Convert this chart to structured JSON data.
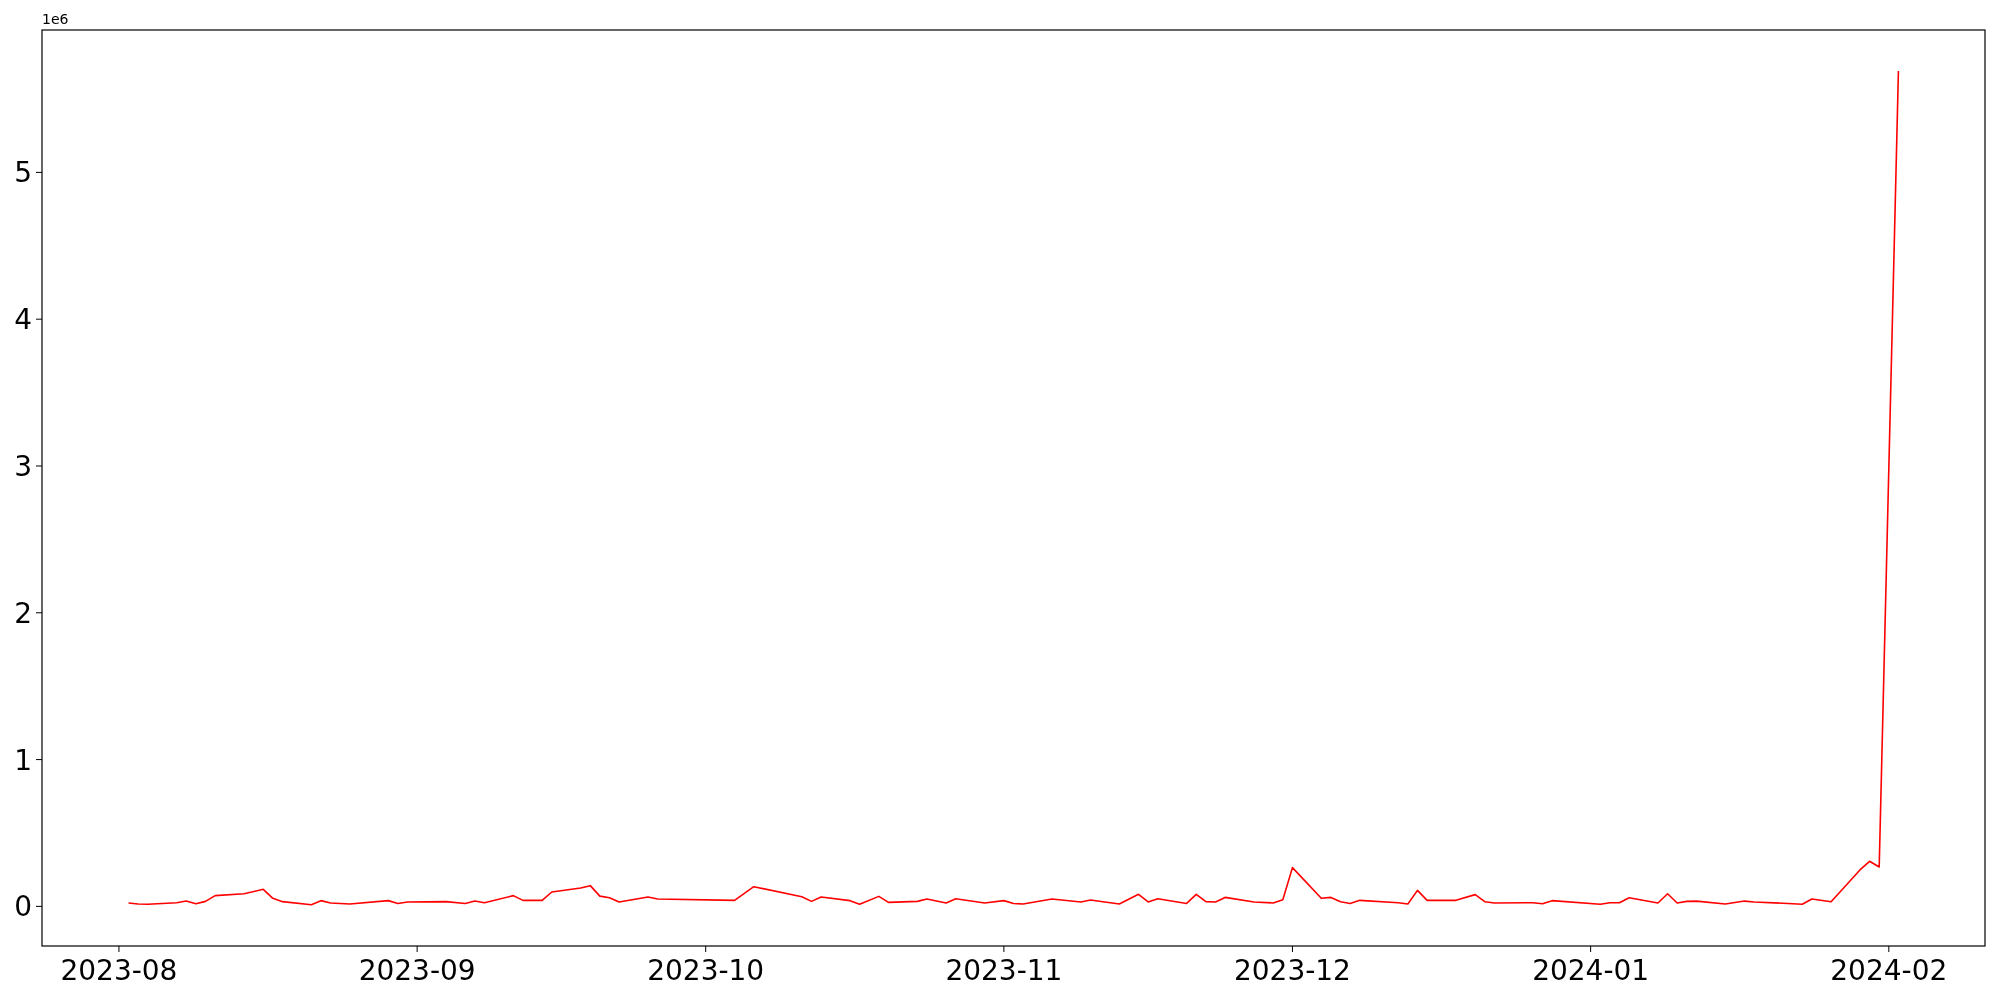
{
  "chart_data": {
    "type": "line",
    "annotations": [
      "1e6"
    ],
    "x": [
      "2023-08-02",
      "2023-08-03",
      "2023-08-04",
      "2023-08-07",
      "2023-08-08",
      "2023-08-09",
      "2023-08-10",
      "2023-08-11",
      "2023-08-14",
      "2023-08-16",
      "2023-08-17",
      "2023-08-18",
      "2023-08-21",
      "2023-08-22",
      "2023-08-23",
      "2023-08-25",
      "2023-08-29",
      "2023-08-30",
      "2023-08-31",
      "2023-09-04",
      "2023-09-06",
      "2023-09-07",
      "2023-09-08",
      "2023-09-11",
      "2023-09-12",
      "2023-09-14",
      "2023-09-15",
      "2023-09-18",
      "2023-09-19",
      "2023-09-20",
      "2023-09-21",
      "2023-09-22",
      "2023-09-25",
      "2023-09-26",
      "2023-10-04",
      "2023-10-06",
      "2023-10-11",
      "2023-10-12",
      "2023-10-13",
      "2023-10-16",
      "2023-10-17",
      "2023-10-19",
      "2023-10-20",
      "2023-10-23",
      "2023-10-24",
      "2023-10-26",
      "2023-10-27",
      "2023-10-30",
      "2023-11-01",
      "2023-11-02",
      "2023-11-03",
      "2023-11-06",
      "2023-11-09",
      "2023-11-10",
      "2023-11-13",
      "2023-11-15",
      "2023-11-16",
      "2023-11-17",
      "2023-11-20",
      "2023-11-21",
      "2023-11-22",
      "2023-11-23",
      "2023-11-24",
      "2023-11-27",
      "2023-11-29",
      "2023-11-30",
      "2023-12-01",
      "2023-12-04",
      "2023-12-05",
      "2023-12-06",
      "2023-12-07",
      "2023-12-08",
      "2023-12-12",
      "2023-12-13",
      "2023-12-14",
      "2023-12-15",
      "2023-12-18",
      "2023-12-20",
      "2023-12-21",
      "2023-12-22",
      "2023-12-26",
      "2023-12-27",
      "2023-12-28",
      "2024-01-02",
      "2024-01-03",
      "2024-01-04",
      "2024-01-05",
      "2024-01-08",
      "2024-01-09",
      "2024-01-10",
      "2024-01-11",
      "2024-01-12",
      "2024-01-15",
      "2024-01-17",
      "2024-01-18",
      "2024-01-22",
      "2024-01-23",
      "2024-01-24",
      "2024-01-26",
      "2024-01-29",
      "2024-01-30",
      "2024-01-31",
      "2024-02-02"
    ],
    "series": [
      {
        "color": "#ff0000",
        "values": [
          0.023,
          0.016,
          0.014,
          0.025,
          0.036,
          0.018,
          0.034,
          0.073,
          0.086,
          0.116,
          0.055,
          0.032,
          0.011,
          0.039,
          0.023,
          0.016,
          0.039,
          0.02,
          0.03,
          0.032,
          0.02,
          0.036,
          0.025,
          0.073,
          0.041,
          0.041,
          0.098,
          0.125,
          0.141,
          0.07,
          0.059,
          0.03,
          0.064,
          0.05,
          0.041,
          0.134,
          0.066,
          0.034,
          0.064,
          0.039,
          0.014,
          0.068,
          0.027,
          0.034,
          0.05,
          0.023,
          0.052,
          0.023,
          0.039,
          0.02,
          0.016,
          0.05,
          0.03,
          0.043,
          0.016,
          0.082,
          0.03,
          0.052,
          0.02,
          0.082,
          0.032,
          0.03,
          0.061,
          0.03,
          0.023,
          0.045,
          0.264,
          0.055,
          0.061,
          0.032,
          0.02,
          0.041,
          0.025,
          0.016,
          0.109,
          0.041,
          0.041,
          0.08,
          0.032,
          0.023,
          0.025,
          0.018,
          0.039,
          0.014,
          0.025,
          0.025,
          0.059,
          0.023,
          0.086,
          0.023,
          0.034,
          0.036,
          0.016,
          0.036,
          0.03,
          0.018,
          0.014,
          0.05,
          0.032,
          0.248,
          0.307,
          0.268,
          5.69
        ]
      }
    ],
    "xlim": [
      "2023-07-24",
      "2024-02-11"
    ],
    "xticks": [
      {
        "value": "2023-08-01",
        "label": "2023-08"
      },
      {
        "value": "2023-09-01",
        "label": "2023-09"
      },
      {
        "value": "2023-10-01",
        "label": "2023-10"
      },
      {
        "value": "2023-11-01",
        "label": "2023-11"
      },
      {
        "value": "2023-12-01",
        "label": "2023-12"
      },
      {
        "value": "2024-01-01",
        "label": "2024-01"
      },
      {
        "value": "2024-02-01",
        "label": "2024-02"
      }
    ],
    "ylim": [
      -0.27,
      5.97
    ],
    "yticks": [
      0,
      1,
      2,
      3,
      4,
      5
    ],
    "grid": false
  }
}
